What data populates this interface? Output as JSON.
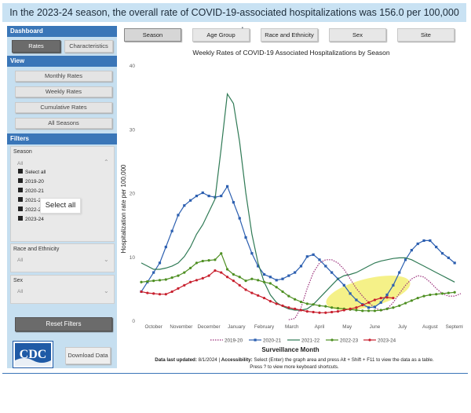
{
  "banner": "In the 2023-24 season, the overall rate of COVID-19-associated hospitalizations was 156.0 per 100,000 people",
  "sidebar": {
    "dashboard_head": "Dashboard",
    "rates_btn": "Rates",
    "characteristics_btn": "Characteristics",
    "view_head": "View",
    "view_buttons": [
      "Monthly Rates",
      "Weekly Rates",
      "Cumulative Rates",
      "All Seasons"
    ],
    "filters_head": "Filters",
    "season_label": "Season",
    "season_value": "All",
    "season_options": [
      "Select all",
      "2019-20",
      "2020-21",
      "2021-22",
      "2022-23",
      "2023-24"
    ],
    "tooltip": "Select all",
    "race_label": "Race and Ethnicity",
    "race_value": "All",
    "sex_label": "Sex",
    "sex_value": "All",
    "reset_btn": "Reset Filters",
    "logo_text": "CDC",
    "download_btn": "Download Data"
  },
  "tabs": [
    "Season",
    "Age Group",
    "Race and Ethnicity",
    "Sex",
    "Site"
  ],
  "footer": {
    "updated_label": "Data last updated:",
    "updated_value": "8/1/2024",
    "accessibility_label": "Accessibility:",
    "accessibility_text": "Select (Enter) the graph area and press Alt + Shift + F11 to view the data as a table.",
    "shortcut_text": "Press ? to view more keyboard shortcuts."
  },
  "colors": {
    "s2019": "#9a2f7a",
    "s2020": "#2c5fb0",
    "s2021": "#2f7a55",
    "s2022": "#4e8f22",
    "s2023": "#c8202e",
    "highlight": "#f3ef73"
  },
  "chart_data": {
    "type": "line",
    "title": "Weekly Rates of COVID-19 Associated Hospitalizations by Season",
    "xlabel": "Surveillance Month",
    "ylabel": "Hospitalization rate per 100,000",
    "ylim": [
      0,
      40
    ],
    "yticks": [
      0,
      10,
      20,
      30,
      40
    ],
    "x_range": [
      0,
      52
    ],
    "x_ticks": [
      {
        "label": "October",
        "x": 2
      },
      {
        "label": "November",
        "x": 6.5
      },
      {
        "label": "December",
        "x": 11
      },
      {
        "label": "January",
        "x": 15.5
      },
      {
        "label": "February",
        "x": 20
      },
      {
        "label": "March",
        "x": 24.5
      },
      {
        "label": "April",
        "x": 29
      },
      {
        "label": "May",
        "x": 33.5
      },
      {
        "label": "June",
        "x": 38
      },
      {
        "label": "July",
        "x": 42.5
      },
      {
        "label": "August",
        "x": 47
      },
      {
        "label": "September",
        "x": 51.5
      }
    ],
    "grid": false,
    "legend_position": "bottom",
    "series": [
      {
        "name": "2019-20",
        "style": "dotted",
        "marker": "none",
        "start": 24,
        "values": [
          0.1,
          0.3,
          2.0,
          5.0,
          7.5,
          9.0,
          9.5,
          9.5,
          9.0,
          8.0,
          6.5,
          5.0,
          3.8,
          2.8,
          2.0,
          1.5,
          1.8,
          2.8,
          4.2,
          5.5,
          6.5,
          7.0,
          6.8,
          6.0,
          5.0,
          4.2,
          3.8,
          3.8,
          4.2
        ]
      },
      {
        "name": "2020-21",
        "style": "solid",
        "marker": "square",
        "start": 0,
        "values": [
          4.5,
          6.0,
          7.5,
          9.0,
          11.5,
          14.0,
          16.5,
          18.0,
          18.8,
          19.5,
          20.0,
          19.5,
          19.3,
          19.5,
          21.0,
          18.5,
          16.0,
          13.0,
          10.5,
          8.5,
          7.2,
          6.8,
          6.3,
          6.5,
          7.0,
          7.5,
          8.5,
          10.0,
          10.3,
          9.5,
          8.5,
          7.5,
          6.5,
          5.5,
          4.2,
          3.2,
          2.5,
          2.0,
          2.1,
          2.8,
          4.0,
          5.5,
          7.5,
          9.5,
          11.0,
          12.0,
          12.5,
          12.5,
          11.5,
          10.5,
          9.8,
          9.0
        ]
      },
      {
        "name": "2021-22",
        "style": "solid",
        "marker": "none",
        "start": 0,
        "values": [
          9.0,
          8.5,
          8.0,
          8.0,
          8.2,
          8.5,
          9.0,
          10.0,
          11.5,
          13.5,
          15.0,
          17.0,
          19.0,
          27.0,
          35.5,
          34.0,
          28.0,
          20.0,
          13.5,
          9.0,
          6.0,
          4.0,
          2.8,
          2.2,
          1.8,
          1.6,
          1.6,
          1.8,
          2.5,
          3.5,
          4.5,
          5.5,
          6.5,
          7.0,
          7.2,
          7.5,
          8.0,
          8.5,
          9.0,
          9.3,
          9.5,
          9.7,
          9.8,
          9.8,
          9.5,
          9.0,
          8.5,
          8.0,
          7.5,
          7.0,
          6.5,
          6.0
        ]
      },
      {
        "name": "2022-23",
        "style": "solid",
        "marker": "circle",
        "start": 0,
        "values": [
          6.0,
          6.1,
          6.2,
          6.3,
          6.4,
          6.7,
          7.0,
          7.5,
          8.2,
          9.0,
          9.3,
          9.4,
          9.5,
          10.5,
          8.0,
          7.2,
          6.8,
          6.2,
          6.5,
          6.3,
          6.0,
          5.8,
          5.2,
          4.5,
          3.8,
          3.3,
          2.9,
          2.6,
          2.5,
          2.3,
          2.2,
          2.0,
          1.9,
          1.8,
          1.7,
          1.6,
          1.5,
          1.5,
          1.5,
          1.6,
          1.8,
          2.0,
          2.3,
          2.7,
          3.1,
          3.5,
          3.8,
          4.0,
          4.1,
          4.2,
          4.3,
          4.4
        ]
      },
      {
        "name": "2023-24",
        "style": "solid",
        "marker": "circle",
        "start": 0,
        "values": [
          4.5,
          4.3,
          4.2,
          4.1,
          4.1,
          4.5,
          5.0,
          5.5,
          6.0,
          6.3,
          6.6,
          7.0,
          7.8,
          7.5,
          6.8,
          6.2,
          5.5,
          4.8,
          4.3,
          3.9,
          3.5,
          3.0,
          2.6,
          2.3,
          2.0,
          1.8,
          1.6,
          1.4,
          1.3,
          1.2,
          1.2,
          1.3,
          1.4,
          1.6,
          1.8,
          2.0,
          2.4,
          2.8,
          3.2,
          3.5,
          3.6,
          3.5
        ]
      }
    ]
  }
}
